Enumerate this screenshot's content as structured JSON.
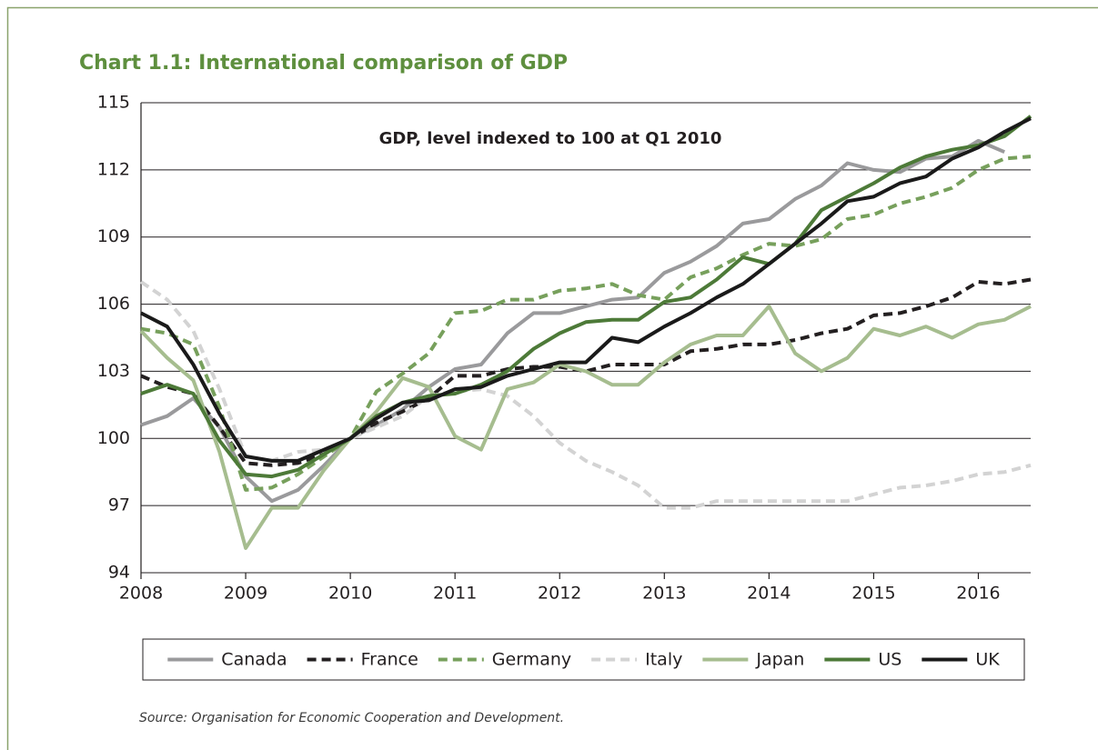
{
  "chart_data": {
    "type": "line",
    "title": "Chart 1.1: International comparison of GDP",
    "annotation": "GDP, level indexed to 100 at Q1 2010",
    "source": "Source: Organisation for Economic Cooperation and Development.",
    "x": [
      2008,
      2008.25,
      2008.5,
      2008.75,
      2009,
      2009.25,
      2009.5,
      2009.75,
      2010,
      2010.25,
      2010.5,
      2010.75,
      2011,
      2011.25,
      2011.5,
      2011.75,
      2012,
      2012.25,
      2012.5,
      2012.75,
      2013,
      2013.25,
      2013.5,
      2013.75,
      2014,
      2014.25,
      2014.5,
      2014.75,
      2015,
      2015.25,
      2015.5,
      2015.75,
      2016,
      2016.25,
      2016.5
    ],
    "series": [
      {
        "name": "Canada",
        "color": "#9a9a9c",
        "dashed": false,
        "values": [
          100.6,
          101.0,
          101.8,
          100.5,
          98.3,
          97.2,
          97.7,
          98.8,
          100.0,
          100.6,
          101.3,
          102.3,
          103.1,
          103.3,
          104.7,
          105.6,
          105.6,
          105.9,
          106.2,
          106.3,
          107.4,
          107.9,
          108.6,
          109.6,
          109.8,
          110.7,
          111.3,
          112.3,
          112.0,
          111.9,
          112.5,
          112.6,
          113.3,
          112.8,
          null
        ]
      },
      {
        "name": "France",
        "color": "#231f20",
        "dashed": true,
        "values": [
          102.8,
          102.3,
          102.0,
          100.5,
          98.9,
          98.8,
          98.9,
          99.3,
          100.0,
          100.7,
          101.2,
          101.8,
          102.8,
          102.8,
          103.1,
          103.2,
          103.2,
          103.0,
          103.3,
          103.3,
          103.3,
          103.9,
          104.0,
          104.2,
          104.2,
          104.4,
          104.7,
          104.9,
          105.5,
          105.6,
          105.9,
          106.3,
          107.0,
          106.9,
          107.1
        ]
      },
      {
        "name": "Germany",
        "color": "#77a05c",
        "dashed": true,
        "values": [
          104.9,
          104.7,
          104.2,
          101.4,
          97.7,
          97.8,
          98.4,
          99.2,
          100.0,
          102.1,
          102.9,
          103.8,
          105.6,
          105.7,
          106.2,
          106.2,
          106.6,
          106.7,
          106.9,
          106.4,
          106.2,
          107.2,
          107.6,
          108.2,
          108.7,
          108.6,
          108.9,
          109.8,
          110.0,
          110.5,
          110.8,
          111.2,
          112.0,
          112.5,
          112.6
        ]
      },
      {
        "name": "Italy",
        "color": "#d3d3d3",
        "dashed": true,
        "values": [
          107.0,
          106.2,
          104.8,
          102.2,
          99.2,
          99.0,
          99.4,
          99.5,
          100.0,
          100.5,
          101.0,
          101.9,
          102.1,
          102.2,
          101.9,
          101.0,
          99.8,
          99.0,
          98.5,
          97.9,
          96.9,
          96.9,
          97.2,
          97.2,
          97.2,
          97.2,
          97.2,
          97.2,
          97.5,
          97.8,
          97.9,
          98.1,
          98.4,
          98.5,
          98.8
        ]
      },
      {
        "name": "Japan",
        "color": "#a6bd8f",
        "dashed": false,
        "values": [
          104.8,
          103.6,
          102.6,
          99.4,
          95.1,
          96.9,
          96.9,
          98.6,
          100.0,
          101.2,
          102.7,
          102.3,
          100.1,
          99.5,
          102.2,
          102.5,
          103.3,
          103.0,
          102.4,
          102.4,
          103.4,
          104.2,
          104.6,
          104.6,
          105.9,
          103.8,
          103.0,
          103.6,
          104.9,
          104.6,
          105.0,
          104.5,
          105.1,
          105.3,
          105.9
        ]
      },
      {
        "name": "US",
        "color": "#4d7a38",
        "dashed": false,
        "values": [
          102.0,
          102.4,
          102.0,
          99.9,
          98.4,
          98.3,
          98.6,
          99.3,
          100.0,
          101.0,
          101.6,
          101.9,
          102.0,
          102.4,
          103.0,
          104.0,
          104.7,
          105.2,
          105.3,
          105.3,
          106.1,
          106.3,
          107.1,
          108.1,
          107.8,
          108.7,
          110.2,
          110.8,
          111.4,
          112.1,
          112.6,
          112.9,
          113.1,
          113.5,
          114.4
        ]
      },
      {
        "name": "UK",
        "color": "#1a1a1a",
        "dashed": false,
        "values": [
          105.6,
          105.0,
          103.3,
          101.1,
          99.2,
          99.0,
          99.0,
          99.5,
          100.0,
          100.9,
          101.6,
          101.7,
          102.2,
          102.3,
          102.8,
          103.1,
          103.4,
          103.4,
          104.5,
          104.3,
          105.0,
          105.6,
          106.3,
          106.9,
          107.8,
          108.7,
          109.6,
          110.6,
          110.8,
          111.4,
          111.7,
          112.5,
          113.0,
          113.7,
          114.3
        ]
      }
    ],
    "xlim": [
      2008,
      2016.5
    ],
    "xticks": [
      2008,
      2009,
      2010,
      2011,
      2012,
      2013,
      2014,
      2015,
      2016
    ],
    "ylim": [
      94,
      115
    ],
    "yticks": [
      94,
      97,
      100,
      103,
      106,
      109,
      112,
      115
    ],
    "grid": true,
    "legend": "bottom"
  }
}
